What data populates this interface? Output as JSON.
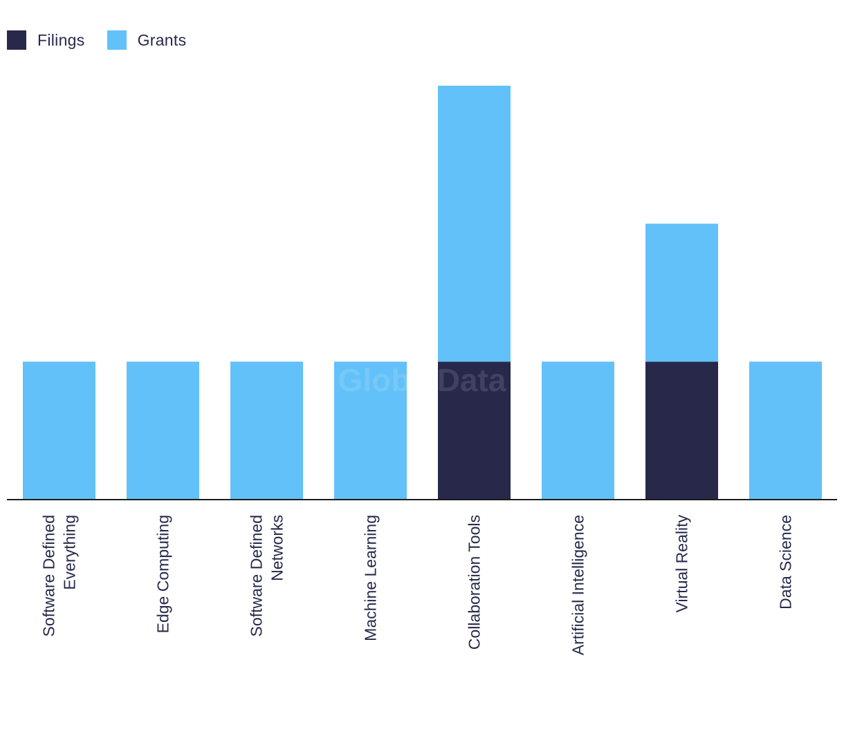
{
  "colors": {
    "filings": "#27284a",
    "grants": "#62c1f8",
    "axis": "#1b1b1b",
    "label": "#27284a",
    "watermark": "#eef1f7"
  },
  "watermark": "GlobalData",
  "chart_data": {
    "type": "bar",
    "stacked": true,
    "categories": [
      [
        "Software Defined",
        "Everything"
      ],
      [
        "Edge Computing"
      ],
      [
        "Software Defined",
        "Networks"
      ],
      [
        "Machine Learning"
      ],
      [
        "Collaboration Tools"
      ],
      [
        "Artificial Intelligence"
      ],
      [
        "Virtual Reality"
      ],
      [
        "Data Science"
      ]
    ],
    "series": [
      {
        "name": "Filings",
        "values": [
          0,
          0,
          0,
          0,
          1,
          0,
          1,
          0
        ]
      },
      {
        "name": "Grants",
        "values": [
          1,
          1,
          1,
          1,
          2,
          1,
          1,
          1
        ]
      }
    ],
    "title": "",
    "xlabel": "",
    "ylabel": "",
    "ylim": [
      0,
      3
    ],
    "grid": false,
    "legend_position": "top-left"
  }
}
